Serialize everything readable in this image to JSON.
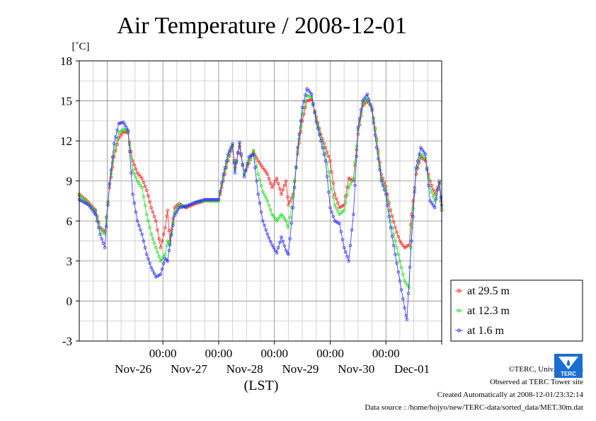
{
  "chart_data": {
    "type": "line",
    "title": "Air Temperature / 2008-12-01",
    "ylabel": "[˚C]",
    "xlabel": "(LST)",
    "ylim": [
      -3,
      18
    ],
    "yticks": [
      -3,
      0,
      3,
      6,
      9,
      12,
      15,
      18
    ],
    "xlim": [
      "2008-11-25 12:00",
      "2008-12-01 24:00"
    ],
    "xticks": [
      {
        "x": "2008-11-27 00:00",
        "time": "00:00",
        "day": "Nov-26"
      },
      {
        "x": "2008-11-28 00:00",
        "time": "00:00",
        "day": "Nov-27"
      },
      {
        "x": "2008-11-29 00:00",
        "time": "00:00",
        "day": "Nov-28"
      },
      {
        "x": "2008-11-30 00:00",
        "time": "00:00",
        "day": "Nov-29"
      },
      {
        "x": "2008-12-01 00:00",
        "time": "00:00",
        "day": "Nov-30"
      },
      {
        "x": "2008-12-02 00:00",
        "time": "",
        "day": "Dec-01"
      }
    ],
    "grid": true,
    "legend_position": "bottom-right",
    "series": [
      {
        "name": "at 29.5 m",
        "color": "#ff2020",
        "points": [
          [
            "2008-11-25 12:00",
            8.0
          ],
          [
            "2008-11-25 16:00",
            7.4
          ],
          [
            "2008-11-25 19:00",
            6.8
          ],
          [
            "2008-11-25 21:00",
            5.5
          ],
          [
            "2008-11-25 23:00",
            5.2
          ],
          [
            "2008-11-26 01:00",
            8.5
          ],
          [
            "2008-11-26 03:00",
            10.8
          ],
          [
            "2008-11-26 05:00",
            12.2
          ],
          [
            "2008-11-26 07:00",
            12.7
          ],
          [
            "2008-11-26 09:00",
            12.6
          ],
          [
            "2008-11-26 11:00",
            10.5
          ],
          [
            "2008-11-26 13:00",
            9.6
          ],
          [
            "2008-11-26 15:00",
            9.2
          ],
          [
            "2008-11-26 17:00",
            8.3
          ],
          [
            "2008-11-26 19:00",
            7.0
          ],
          [
            "2008-11-26 21:00",
            6.0
          ],
          [
            "2008-11-26 23:00",
            4.0
          ],
          [
            "2008-11-27 01:00",
            5.5
          ],
          [
            "2008-11-27 02:00",
            6.8
          ],
          [
            "2008-11-27 03:00",
            4.5
          ],
          [
            "2008-11-27 05:00",
            7.0
          ],
          [
            "2008-11-27 07:00",
            7.3
          ],
          [
            "2008-11-27 10:00",
            7.0
          ],
          [
            "2008-11-27 14:00",
            7.3
          ],
          [
            "2008-11-27 18:00",
            7.5
          ],
          [
            "2008-11-27 24:00",
            7.5
          ],
          [
            "2008-11-28 02:00",
            9.0
          ],
          [
            "2008-11-28 04:00",
            10.5
          ],
          [
            "2008-11-28 06:00",
            11.6
          ],
          [
            "2008-11-28 07:00",
            10.0
          ],
          [
            "2008-11-28 09:00",
            11.6
          ],
          [
            "2008-11-28 11:00",
            9.5
          ],
          [
            "2008-11-28 13:00",
            10.3
          ],
          [
            "2008-11-28 15:00",
            11.2
          ],
          [
            "2008-11-28 17:00",
            10.5
          ],
          [
            "2008-11-28 19:00",
            10.0
          ],
          [
            "2008-11-28 21:00",
            9.5
          ],
          [
            "2008-11-28 23:00",
            8.5
          ],
          [
            "2008-11-29 01:00",
            9.2
          ],
          [
            "2008-11-29 03:00",
            8.0
          ],
          [
            "2008-11-29 05:00",
            9.0
          ],
          [
            "2008-11-29 06:00",
            7.2
          ],
          [
            "2008-11-29 08:00",
            8.0
          ],
          [
            "2008-11-29 10:00",
            11.0
          ],
          [
            "2008-11-29 12:00",
            13.5
          ],
          [
            "2008-11-29 14:00",
            15.0
          ],
          [
            "2008-11-29 16:00",
            15.1
          ],
          [
            "2008-11-29 18:00",
            13.8
          ],
          [
            "2008-11-29 20:00",
            12.5
          ],
          [
            "2008-11-29 22:00",
            11.5
          ],
          [
            "2008-11-30 00:00",
            10.5
          ],
          [
            "2008-11-30 02:00",
            8.0
          ],
          [
            "2008-11-30 04:00",
            7.0
          ],
          [
            "2008-11-30 06:00",
            7.2
          ],
          [
            "2008-11-30 08:00",
            9.2
          ],
          [
            "2008-11-30 10:00",
            9.0
          ],
          [
            "2008-11-30 12:00",
            12.5
          ],
          [
            "2008-11-30 14:00",
            14.6
          ],
          [
            "2008-11-30 16:00",
            15.0
          ],
          [
            "2008-11-30 18:00",
            14.5
          ],
          [
            "2008-11-30 20:00",
            12.2
          ],
          [
            "2008-11-30 22:00",
            9.5
          ],
          [
            "2008-12-01 00:00",
            8.6
          ],
          [
            "2008-12-01 02:00",
            6.8
          ],
          [
            "2008-12-01 04:00",
            5.5
          ],
          [
            "2008-12-01 06:00",
            4.5
          ],
          [
            "2008-12-01 08:00",
            4.0
          ],
          [
            "2008-12-01 10:00",
            4.2
          ],
          [
            "2008-12-01 11:00",
            6.5
          ],
          [
            "2008-12-01 13:00",
            9.5
          ],
          [
            "2008-12-01 15:00",
            10.8
          ],
          [
            "2008-12-01 17:00",
            10.5
          ],
          [
            "2008-12-01 19:00",
            9.0
          ],
          [
            "2008-12-01 21:00",
            8.0
          ],
          [
            "2008-12-01 23:00",
            8.8
          ],
          [
            "2008-12-01 24:00",
            6.8
          ]
        ]
      },
      {
        "name": "at 12.3 m",
        "color": "#20e020",
        "points": [
          [
            "2008-11-25 12:00",
            7.9
          ],
          [
            "2008-11-25 16:00",
            7.3
          ],
          [
            "2008-11-25 19:00",
            6.7
          ],
          [
            "2008-11-25 21:00",
            5.4
          ],
          [
            "2008-11-25 23:00",
            5.0
          ],
          [
            "2008-11-26 01:00",
            8.7
          ],
          [
            "2008-11-26 03:00",
            11.2
          ],
          [
            "2008-11-26 05:00",
            12.6
          ],
          [
            "2008-11-26 07:00",
            12.9
          ],
          [
            "2008-11-26 09:00",
            12.7
          ],
          [
            "2008-11-26 11:00",
            9.8
          ],
          [
            "2008-11-26 13:00",
            9.0
          ],
          [
            "2008-11-26 15:00",
            8.5
          ],
          [
            "2008-11-26 17:00",
            6.5
          ],
          [
            "2008-11-26 19:00",
            5.0
          ],
          [
            "2008-11-26 21:00",
            4.0
          ],
          [
            "2008-11-26 23:00",
            3.0
          ],
          [
            "2008-11-27 01:00",
            3.5
          ],
          [
            "2008-11-27 02:00",
            4.5
          ],
          [
            "2008-11-27 03:00",
            4.3
          ],
          [
            "2008-11-27 05:00",
            6.6
          ],
          [
            "2008-11-27 07:00",
            7.2
          ],
          [
            "2008-11-27 10:00",
            7.1
          ],
          [
            "2008-11-27 14:00",
            7.4
          ],
          [
            "2008-11-27 18:00",
            7.5
          ],
          [
            "2008-11-27 24:00",
            7.5
          ],
          [
            "2008-11-28 02:00",
            9.3
          ],
          [
            "2008-11-28 04:00",
            10.8
          ],
          [
            "2008-11-28 06:00",
            11.7
          ],
          [
            "2008-11-28 07:00",
            9.8
          ],
          [
            "2008-11-28 09:00",
            11.8
          ],
          [
            "2008-11-28 11:00",
            9.5
          ],
          [
            "2008-11-28 13:00",
            10.5
          ],
          [
            "2008-11-28 15:00",
            11.3
          ],
          [
            "2008-11-28 17:00",
            9.5
          ],
          [
            "2008-11-28 19:00",
            8.2
          ],
          [
            "2008-11-28 21:00",
            7.5
          ],
          [
            "2008-11-28 23:00",
            6.5
          ],
          [
            "2008-11-29 01:00",
            6.0
          ],
          [
            "2008-11-29 03:00",
            6.5
          ],
          [
            "2008-11-29 05:00",
            6.0
          ],
          [
            "2008-11-29 06:00",
            5.5
          ],
          [
            "2008-11-29 08:00",
            7.8
          ],
          [
            "2008-11-29 10:00",
            11.2
          ],
          [
            "2008-11-29 12:00",
            14.0
          ],
          [
            "2008-11-29 14:00",
            15.4
          ],
          [
            "2008-11-29 16:00",
            15.3
          ],
          [
            "2008-11-29 18:00",
            13.6
          ],
          [
            "2008-11-29 20:00",
            12.3
          ],
          [
            "2008-11-29 22:00",
            11.0
          ],
          [
            "2008-11-30 00:00",
            9.0
          ],
          [
            "2008-11-30 02:00",
            7.2
          ],
          [
            "2008-11-30 04:00",
            6.5
          ],
          [
            "2008-11-30 06:00",
            6.8
          ],
          [
            "2008-11-30 08:00",
            8.5
          ],
          [
            "2008-11-30 10:00",
            9.2
          ],
          [
            "2008-11-30 12:00",
            12.8
          ],
          [
            "2008-11-30 14:00",
            14.8
          ],
          [
            "2008-11-30 16:00",
            15.2
          ],
          [
            "2008-11-30 18:00",
            14.4
          ],
          [
            "2008-11-30 20:00",
            12.0
          ],
          [
            "2008-11-30 22:00",
            9.2
          ],
          [
            "2008-12-01 00:00",
            8.3
          ],
          [
            "2008-12-01 02:00",
            6.0
          ],
          [
            "2008-12-01 04:00",
            4.5
          ],
          [
            "2008-12-01 06:00",
            3.0
          ],
          [
            "2008-12-01 08:00",
            1.5
          ],
          [
            "2008-12-01 10:00",
            1.0
          ],
          [
            "2008-12-01 11:00",
            5.5
          ],
          [
            "2008-12-01 13:00",
            9.8
          ],
          [
            "2008-12-01 15:00",
            11.0
          ],
          [
            "2008-12-01 17:00",
            10.7
          ],
          [
            "2008-12-01 19:00",
            8.5
          ],
          [
            "2008-12-01 21:00",
            7.5
          ],
          [
            "2008-12-01 23:00",
            8.9
          ],
          [
            "2008-12-01 24:00",
            7.0
          ]
        ]
      },
      {
        "name": "at 1.6 m",
        "color": "#3030ff",
        "points": [
          [
            "2008-11-25 12:00",
            7.6
          ],
          [
            "2008-11-25 16:00",
            7.2
          ],
          [
            "2008-11-25 19:00",
            6.5
          ],
          [
            "2008-11-25 21:00",
            5.0
          ],
          [
            "2008-11-25 23:00",
            4.0
          ],
          [
            "2008-11-26 01:00",
            8.8
          ],
          [
            "2008-11-26 03:00",
            11.8
          ],
          [
            "2008-11-26 05:00",
            13.3
          ],
          [
            "2008-11-26 07:00",
            13.4
          ],
          [
            "2008-11-26 09:00",
            12.8
          ],
          [
            "2008-11-26 11:00",
            8.0
          ],
          [
            "2008-11-26 13:00",
            6.0
          ],
          [
            "2008-11-26 15:00",
            5.0
          ],
          [
            "2008-11-26 17:00",
            3.5
          ],
          [
            "2008-11-26 19:00",
            2.5
          ],
          [
            "2008-11-26 21:00",
            1.8
          ],
          [
            "2008-11-26 23:00",
            2.0
          ],
          [
            "2008-11-27 01:00",
            3.2
          ],
          [
            "2008-11-27 02:00",
            3.0
          ],
          [
            "2008-11-27 03:00",
            4.2
          ],
          [
            "2008-11-27 05:00",
            6.4
          ],
          [
            "2008-11-27 07:00",
            7.0
          ],
          [
            "2008-11-27 10:00",
            7.1
          ],
          [
            "2008-11-27 14:00",
            7.4
          ],
          [
            "2008-11-27 18:00",
            7.6
          ],
          [
            "2008-11-27 24:00",
            7.6
          ],
          [
            "2008-11-28 02:00",
            9.5
          ],
          [
            "2008-11-28 04:00",
            11.0
          ],
          [
            "2008-11-28 06:00",
            11.8
          ],
          [
            "2008-11-28 07:00",
            9.6
          ],
          [
            "2008-11-28 09:00",
            11.9
          ],
          [
            "2008-11-28 11:00",
            9.3
          ],
          [
            "2008-11-28 13:00",
            10.8
          ],
          [
            "2008-11-28 15:00",
            11.0
          ],
          [
            "2008-11-28 17:00",
            8.0
          ],
          [
            "2008-11-28 19:00",
            6.0
          ],
          [
            "2008-11-28 21:00",
            5.0
          ],
          [
            "2008-11-28 23:00",
            4.2
          ],
          [
            "2008-11-29 01:00",
            3.6
          ],
          [
            "2008-11-29 03:00",
            4.8
          ],
          [
            "2008-11-29 05:00",
            3.8
          ],
          [
            "2008-11-29 06:00",
            3.5
          ],
          [
            "2008-11-29 08:00",
            7.0
          ],
          [
            "2008-11-29 10:00",
            11.5
          ],
          [
            "2008-11-29 12:00",
            14.5
          ],
          [
            "2008-11-29 14:00",
            15.9
          ],
          [
            "2008-11-29 16:00",
            15.5
          ],
          [
            "2008-11-29 18:00",
            13.4
          ],
          [
            "2008-11-29 20:00",
            12.0
          ],
          [
            "2008-11-29 22:00",
            10.5
          ],
          [
            "2008-11-30 00:00",
            7.0
          ],
          [
            "2008-11-30 02:00",
            6.0
          ],
          [
            "2008-11-30 04:00",
            5.8
          ],
          [
            "2008-11-30 06:00",
            4.0
          ],
          [
            "2008-11-30 08:00",
            3.0
          ],
          [
            "2008-11-30 10:00",
            6.5
          ],
          [
            "2008-11-30 12:00",
            13.0
          ],
          [
            "2008-11-30 14:00",
            15.0
          ],
          [
            "2008-11-30 16:00",
            15.5
          ],
          [
            "2008-11-30 18:00",
            14.3
          ],
          [
            "2008-11-30 20:00",
            11.5
          ],
          [
            "2008-11-30 22:00",
            9.0
          ],
          [
            "2008-12-01 00:00",
            8.0
          ],
          [
            "2008-12-01 02:00",
            5.5
          ],
          [
            "2008-12-01 04:00",
            3.5
          ],
          [
            "2008-12-01 06:00",
            1.5
          ],
          [
            "2008-12-01 08:00",
            -0.5
          ],
          [
            "2008-12-01 09:00",
            -1.4
          ],
          [
            "2008-12-01 11:00",
            4.5
          ],
          [
            "2008-12-01 13:00",
            10.0
          ],
          [
            "2008-12-01 15:00",
            11.5
          ],
          [
            "2008-12-01 17:00",
            11.0
          ],
          [
            "2008-12-01 19:00",
            7.5
          ],
          [
            "2008-12-01 21:00",
            7.0
          ],
          [
            "2008-12-01 23:00",
            9.0
          ],
          [
            "2008-12-01 24:00",
            7.2
          ]
        ]
      }
    ]
  },
  "credits": {
    "copyright": "©TERC, Univ. Tsukuba",
    "site": "Observed at TERC Tower site",
    "created": "Created Automatically at 2008-12-01/23:32:14",
    "source": "Data source : /home/hojyo/new/TERC-data/sorted_data/MET.30m.dat"
  },
  "logo": {
    "text": "TERC",
    "color": "#1a6fd0"
  }
}
